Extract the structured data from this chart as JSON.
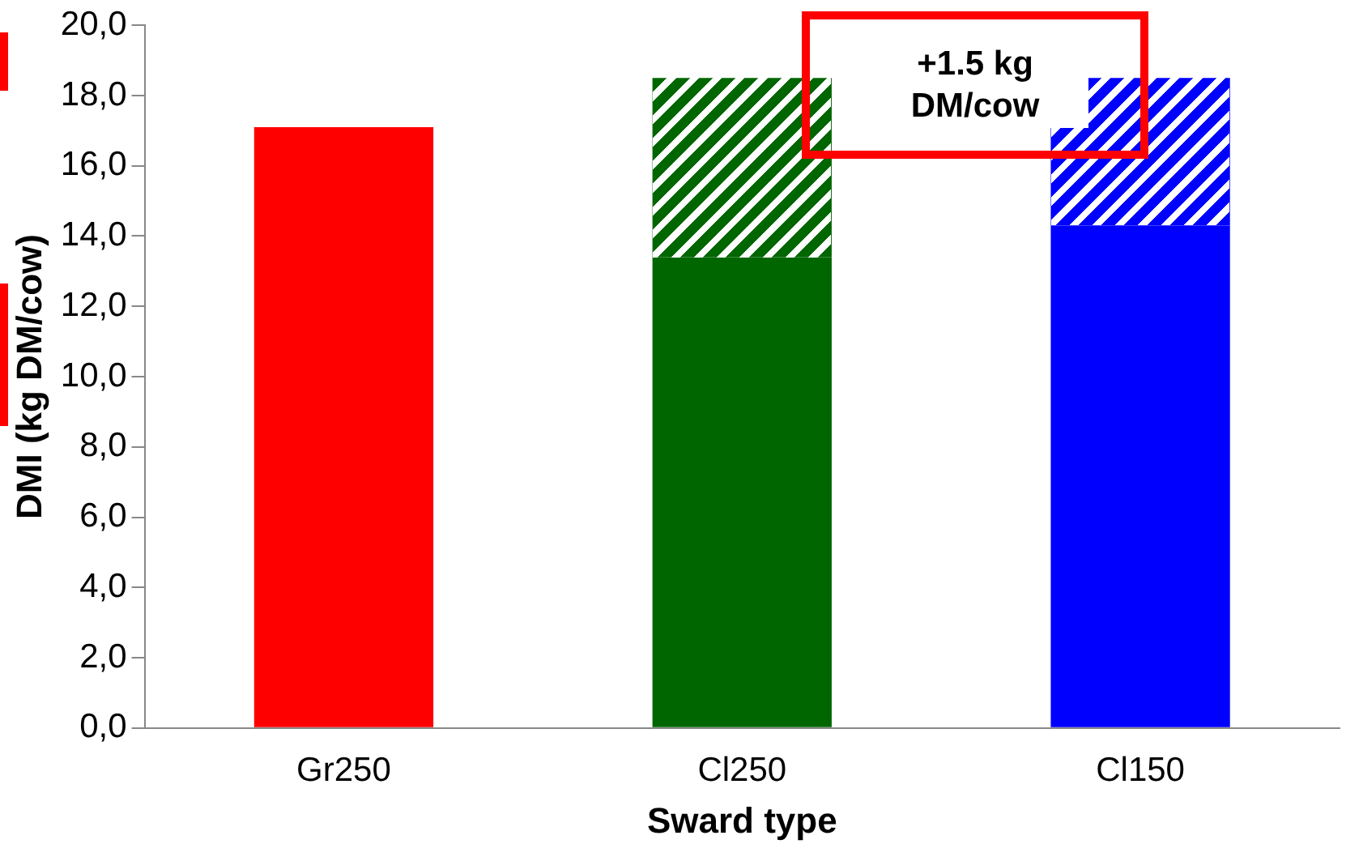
{
  "chart_data": {
    "type": "bar",
    "stacked": true,
    "xlabel": "Sward type",
    "ylabel": "DMI (kg DM/cow)",
    "categories": [
      "Gr250",
      "Cl250",
      "Cl150"
    ],
    "series": [
      {
        "colors": [
          "#ff0000",
          "#006600",
          "#0000ff"
        ],
        "values": [
          17.1,
          13.4,
          14.3
        ]
      },
      {
        "type": "bar",
        "colors": [
          "#ff0000",
          "#006600",
          "#0000ff"
        ],
        "values": [
          null,
          5.1,
          4.2
        ]
      }
    ],
    "ylim": [
      0,
      20
    ],
    "yticks": [
      {
        "value": 0,
        "label": "0,0"
      },
      {
        "value": 2,
        "label": "2,0"
      },
      {
        "value": 4,
        "label": "4,0"
      },
      {
        "value": 6,
        "label": "6,0"
      },
      {
        "value": 8,
        "label": "8,0"
      },
      {
        "value": 10,
        "label": "10,0"
      },
      {
        "value": 12,
        "label": "12,0"
      },
      {
        "value": 14,
        "label": "14,0"
      },
      {
        "value": 16,
        "label": "16,0"
      },
      {
        "value": 18,
        "label": "18,0"
      },
      {
        "value": 20,
        "label": "20,0"
      }
    ],
    "grid": false,
    "legend": false,
    "annotations": [
      {
        "text": "+1.5 kg DM/cow",
        "x": "Cl150",
        "y": 18.3
      }
    ]
  }
}
